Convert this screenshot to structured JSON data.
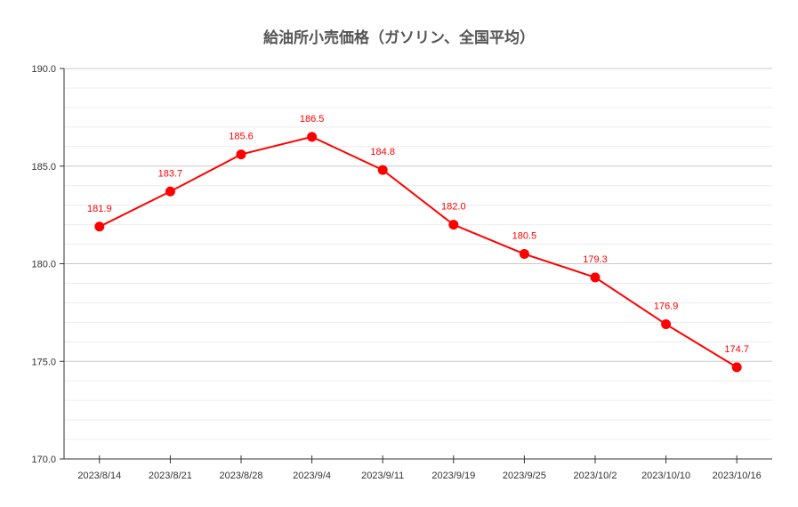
{
  "chart_data": {
    "type": "line",
    "title": "給油所小売価格（ガソリン、全国平均）",
    "xlabel": "",
    "ylabel": "",
    "categories": [
      "2023/8/14",
      "2023/8/21",
      "2023/8/28",
      "2023/9/4",
      "2023/9/11",
      "2023/9/19",
      "2023/9/25",
      "2023/10/2",
      "2023/10/10",
      "2023/10/16"
    ],
    "series": [
      {
        "values": [
          181.9,
          183.7,
          185.6,
          186.5,
          184.8,
          182.0,
          180.5,
          179.3,
          176.9,
          174.7
        ]
      }
    ],
    "data_labels": [
      "181.9",
      "183.7",
      "185.6",
      "186.5",
      "184.8",
      "182.0",
      "180.5",
      "179.3",
      "176.9",
      "174.7"
    ],
    "ylim": [
      170,
      190
    ],
    "y_ticks": [
      170,
      175,
      180,
      185,
      190
    ],
    "y_tick_labels": [
      "170.0",
      "175.0",
      "180.0",
      "185.0",
      "190.0"
    ],
    "grid": true,
    "legend": "none",
    "color": "#ff0000"
  }
}
